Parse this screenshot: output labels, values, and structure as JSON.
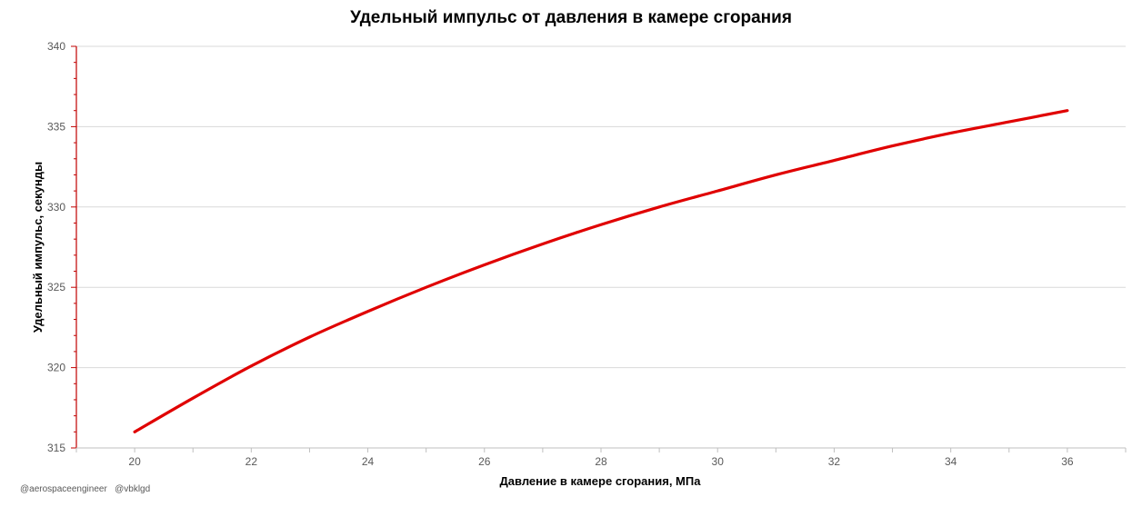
{
  "chart_data": {
    "type": "line",
    "title": "Удельный импульс от давления в камере сгорания",
    "xlabel": "Давление в камере сгорания, МПа",
    "ylabel": "Удельный импульс, секунды",
    "xlim": [
      19,
      37
    ],
    "ylim": [
      315,
      340
    ],
    "xticks": [
      20,
      22,
      24,
      26,
      28,
      30,
      32,
      34,
      36
    ],
    "yticks": [
      315,
      320,
      325,
      330,
      335,
      340
    ],
    "grid": "horizontal",
    "series": [
      {
        "color": "#e00000",
        "x": [
          20,
          21,
          22,
          23,
          24,
          25,
          26,
          27,
          28,
          29,
          30,
          31,
          32,
          33,
          34,
          35,
          36
        ],
        "y": [
          316.0,
          318.1,
          320.1,
          321.9,
          323.5,
          325.0,
          326.4,
          327.7,
          328.9,
          330.0,
          331.0,
          332.0,
          332.9,
          333.8,
          334.6,
          335.3,
          336.0
        ]
      }
    ]
  },
  "credits": "@aerospaceengineer   @vbklgd"
}
